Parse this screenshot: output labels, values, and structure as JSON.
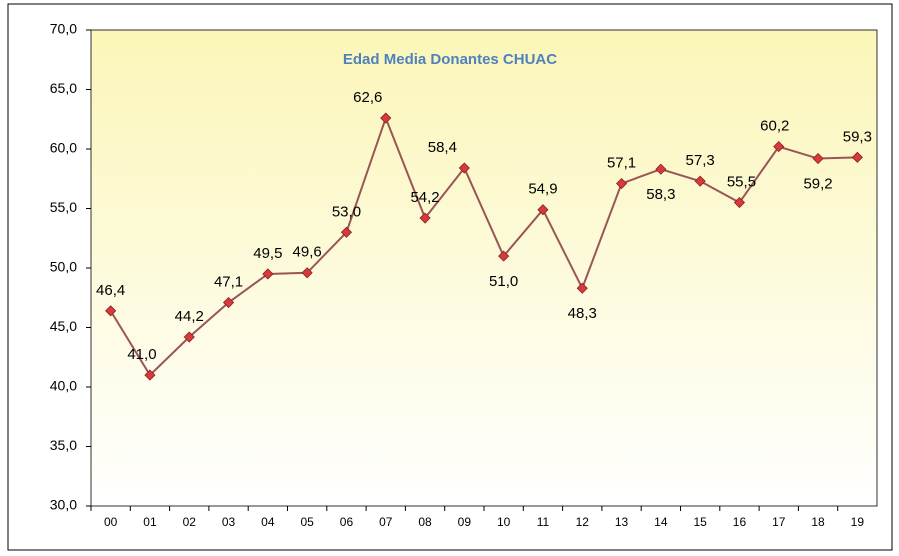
{
  "chart_data": {
    "type": "line",
    "title": "Edad Media Donantes CHUAC",
    "categories": [
      "00",
      "01",
      "02",
      "03",
      "04",
      "05",
      "06",
      "07",
      "08",
      "09",
      "10",
      "11",
      "12",
      "13",
      "14",
      "15",
      "16",
      "17",
      "18",
      "19"
    ],
    "series": [
      {
        "name": "Edad Media",
        "color": "#9a5555",
        "values": [
          46.4,
          41.0,
          44.2,
          47.1,
          49.5,
          49.6,
          53.0,
          62.6,
          54.2,
          58.4,
          51.0,
          54.9,
          48.3,
          57.1,
          58.3,
          57.3,
          55.5,
          60.2,
          59.2,
          59.3
        ],
        "value_labels": [
          "46,4",
          "41,0",
          "44,2",
          "47,1",
          "49,5",
          "49,6",
          "53,0",
          "62,6",
          "54,2",
          "58,4",
          "51,0",
          "54,9",
          "48,3",
          "57,1",
          "58,3",
          "57,3",
          "55,5",
          "60,2",
          "59,2",
          "59,3"
        ]
      }
    ],
    "marker_color": "#d63a3a",
    "ylim": [
      30,
      70
    ],
    "yticks": [
      {
        "value": 30,
        "label": "30,0"
      },
      {
        "value": 35,
        "label": "35,0"
      },
      {
        "value": 40,
        "label": "40,0"
      },
      {
        "value": 45,
        "label": "45,0"
      },
      {
        "value": 50,
        "label": "50,0"
      },
      {
        "value": 55,
        "label": "55,0"
      },
      {
        "value": 60,
        "label": "60,0"
      },
      {
        "value": 65,
        "label": "65,0"
      },
      {
        "value": 70,
        "label": "70,0"
      }
    ]
  }
}
